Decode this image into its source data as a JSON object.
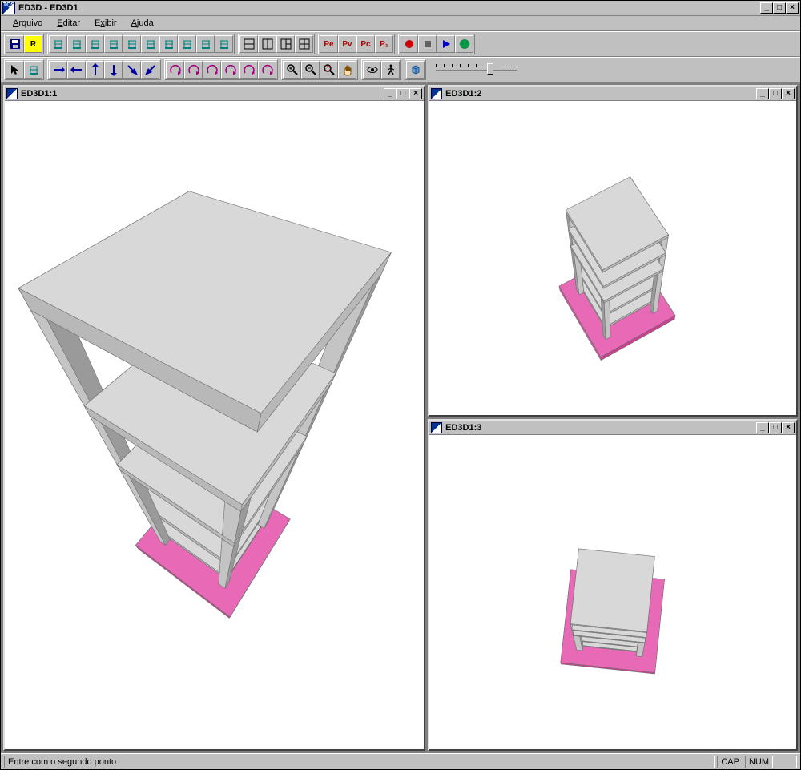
{
  "app": {
    "title": "ED3D - ED3D1",
    "icon_label": "TQS"
  },
  "menu": [
    {
      "label": "Arquivo",
      "underline": 0
    },
    {
      "label": "Editar",
      "underline": 0
    },
    {
      "label": "Exibir",
      "underline": 1
    },
    {
      "label": "Ajuda",
      "underline": 0
    }
  ],
  "toolbar_row1": {
    "groups": [
      {
        "name": "file",
        "buttons": [
          {
            "name": "save-icon",
            "kind": "save"
          },
          {
            "name": "r-mode-icon",
            "kind": "yellow-r",
            "label": "R"
          }
        ]
      },
      {
        "name": "views",
        "buttons": [
          {
            "name": "view-1-icon",
            "kind": "struct"
          },
          {
            "name": "view-2-icon",
            "kind": "struct"
          },
          {
            "name": "view-3-icon",
            "kind": "struct"
          },
          {
            "name": "view-4-icon",
            "kind": "struct"
          },
          {
            "name": "view-5-icon",
            "kind": "struct"
          },
          {
            "name": "view-6-icon",
            "kind": "struct"
          },
          {
            "name": "view-7-icon",
            "kind": "struct"
          },
          {
            "name": "view-8-icon",
            "kind": "struct"
          },
          {
            "name": "view-9-icon",
            "kind": "struct"
          },
          {
            "name": "view-10-icon",
            "kind": "struct"
          }
        ]
      },
      {
        "name": "windows",
        "buttons": [
          {
            "name": "split-h-icon",
            "kind": "split-h"
          },
          {
            "name": "split-v-icon",
            "kind": "split-v"
          },
          {
            "name": "split-3-icon",
            "kind": "split-3"
          },
          {
            "name": "split-4-icon",
            "kind": "split-4"
          }
        ]
      },
      {
        "name": "persp",
        "buttons": [
          {
            "name": "pe-icon",
            "kind": "text",
            "label": "Pe",
            "color": "#b00000"
          },
          {
            "name": "pv-icon",
            "kind": "text",
            "label": "Pv",
            "color": "#b00000"
          },
          {
            "name": "pc-icon",
            "kind": "text",
            "label": "Pc",
            "color": "#b00000"
          },
          {
            "name": "pu-icon",
            "kind": "text",
            "label": "P₁",
            "color": "#b00000"
          }
        ]
      },
      {
        "name": "record",
        "buttons": [
          {
            "name": "record-icon",
            "kind": "dot",
            "color": "#cc0000"
          },
          {
            "name": "stop-icon",
            "kind": "square",
            "color": "#606060"
          },
          {
            "name": "play-icon",
            "kind": "tri",
            "color": "#0000cc"
          },
          {
            "name": "globe-icon",
            "kind": "globe"
          }
        ]
      }
    ]
  },
  "toolbar_row2": {
    "groups": [
      {
        "name": "select",
        "buttons": [
          {
            "name": "pointer-icon",
            "kind": "pointer"
          },
          {
            "name": "struct-sel-icon",
            "kind": "struct"
          }
        ]
      },
      {
        "name": "arrows",
        "buttons": [
          {
            "name": "arrow-right-icon",
            "kind": "arr-r"
          },
          {
            "name": "arrow-left-icon",
            "kind": "arr-l"
          },
          {
            "name": "arrow-up-icon",
            "kind": "arr-u"
          },
          {
            "name": "arrow-down-icon",
            "kind": "arr-d"
          },
          {
            "name": "arrow-diag1-icon",
            "kind": "arr-dr"
          },
          {
            "name": "arrow-diag2-icon",
            "kind": "arr-dl"
          }
        ]
      },
      {
        "name": "rot",
        "buttons": [
          {
            "name": "rot-1-icon",
            "kind": "curve"
          },
          {
            "name": "rot-2-icon",
            "kind": "curve"
          },
          {
            "name": "rot-3-icon",
            "kind": "curve"
          },
          {
            "name": "rot-4-icon",
            "kind": "curve"
          },
          {
            "name": "rot-5-icon",
            "kind": "curve"
          },
          {
            "name": "rot-6-icon",
            "kind": "curve"
          }
        ]
      },
      {
        "name": "zoom",
        "buttons": [
          {
            "name": "zoom-in-icon",
            "kind": "zoom-in"
          },
          {
            "name": "zoom-out-icon",
            "kind": "zoom-out"
          },
          {
            "name": "zoom-fit-icon",
            "kind": "zoom-fit"
          },
          {
            "name": "pan-icon",
            "kind": "hand"
          }
        ]
      },
      {
        "name": "walk",
        "buttons": [
          {
            "name": "eye-icon",
            "kind": "eye"
          },
          {
            "name": "walk-icon",
            "kind": "walk"
          }
        ]
      },
      {
        "name": "render",
        "buttons": [
          {
            "name": "render-icon",
            "kind": "cube"
          }
        ]
      }
    ],
    "slider": {
      "value": 62,
      "ticks": 11
    }
  },
  "child_windows": [
    {
      "id": "v1",
      "title": "ED3D1:1"
    },
    {
      "id": "v2",
      "title": "ED3D1:2"
    },
    {
      "id": "v3",
      "title": "ED3D1:3"
    }
  ],
  "model": {
    "floors": 5,
    "slab_color_light": "#d8d8d8",
    "slab_color_dark": "#b8b8b8",
    "column_color": "#c4c4c4",
    "column_shadow": "#9a9a9a",
    "base_color_top": "#e86ab7",
    "base_color_side": "#c8418f",
    "base_color_side2": "#d455a1",
    "outline_color": "#707070",
    "background": "#ffffff"
  },
  "status": {
    "message": "Entre com o segundo ponto",
    "cells": [
      "CAP",
      "NUM",
      ""
    ]
  },
  "colors": {
    "workspace_bg": "#808080",
    "chrome_bg": "#c0c0c0"
  }
}
